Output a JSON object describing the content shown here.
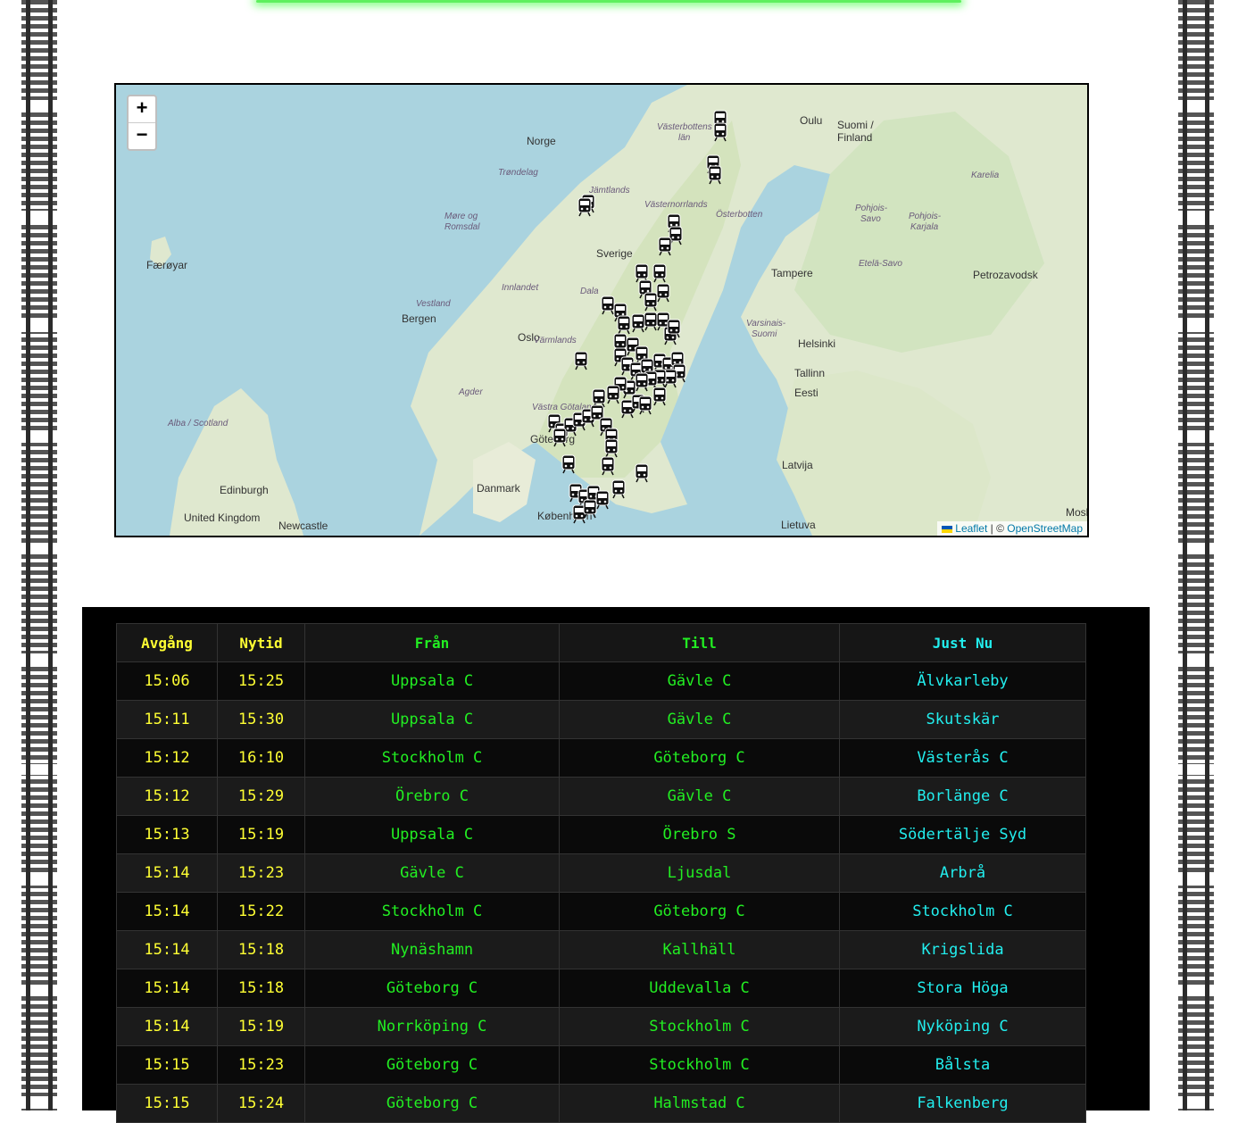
{
  "map": {
    "zoom_in": "+",
    "zoom_out": "−",
    "attribution_leaflet": "Leaflet",
    "attribution_sep": " | © ",
    "attribution_osm": "OpenStreetMap",
    "labels": [
      "Norge",
      "Suomi /",
      "Finland",
      "Oulu",
      "Västerbottens",
      "län",
      "Sverige",
      "Trøndelag",
      "Møre og",
      "Romsdal",
      "Færøyar",
      "Bergen",
      "Vestland",
      "Oslo",
      "Innlandet",
      "Värmlands",
      "Dala",
      "Agder",
      "Tampere",
      "Helsinki",
      "Tallinn",
      "Eesti",
      "Petrozavodsk",
      "Pohjois-",
      "Savo",
      "Pohjois-",
      "Karjala",
      "Karelia",
      "Etelä-Savo",
      "Varsinais-",
      "Suomi",
      "Latvija",
      "Lietuva",
      "Danmark",
      "København",
      "Edinburgh",
      "United Kingdom",
      "Newcastle",
      "Alba / Scotland",
      "Göteborg",
      "Västra Götaland",
      "Österbotten",
      "Västernorrlands",
      "Jämtlands",
      "Moskva"
    ]
  },
  "table": {
    "headers": [
      "Avgång",
      "Nytid",
      "Från",
      "Till",
      "Just Nu"
    ],
    "rows": [
      [
        "15:06",
        "15:25",
        "Uppsala C",
        "Gävle C",
        "Älvkarleby"
      ],
      [
        "15:11",
        "15:30",
        "Uppsala C",
        "Gävle C",
        "Skutskär"
      ],
      [
        "15:12",
        "16:10",
        "Stockholm C",
        "Göteborg C",
        "Västerås C"
      ],
      [
        "15:12",
        "15:29",
        "Örebro C",
        "Gävle C",
        "Borlänge C"
      ],
      [
        "15:13",
        "15:19",
        "Uppsala C",
        "Örebro S",
        "Södertälje Syd"
      ],
      [
        "15:14",
        "15:23",
        "Gävle C",
        "Ljusdal",
        "Arbrå"
      ],
      [
        "15:14",
        "15:22",
        "Stockholm C",
        "Göteborg C",
        "Stockholm C"
      ],
      [
        "15:14",
        "15:18",
        "Nynäshamn",
        "Kallhäll",
        "Krigslida"
      ],
      [
        "15:14",
        "15:18",
        "Göteborg C",
        "Uddevalla C",
        "Stora Höga"
      ],
      [
        "15:14",
        "15:19",
        "Norrköping C",
        "Stockholm C",
        "Nyköping C"
      ],
      [
        "15:15",
        "15:23",
        "Göteborg C",
        "Stockholm C",
        "Bålsta"
      ],
      [
        "15:15",
        "15:24",
        "Göteborg C",
        "Halmstad C",
        "Falkenberg"
      ]
    ]
  }
}
